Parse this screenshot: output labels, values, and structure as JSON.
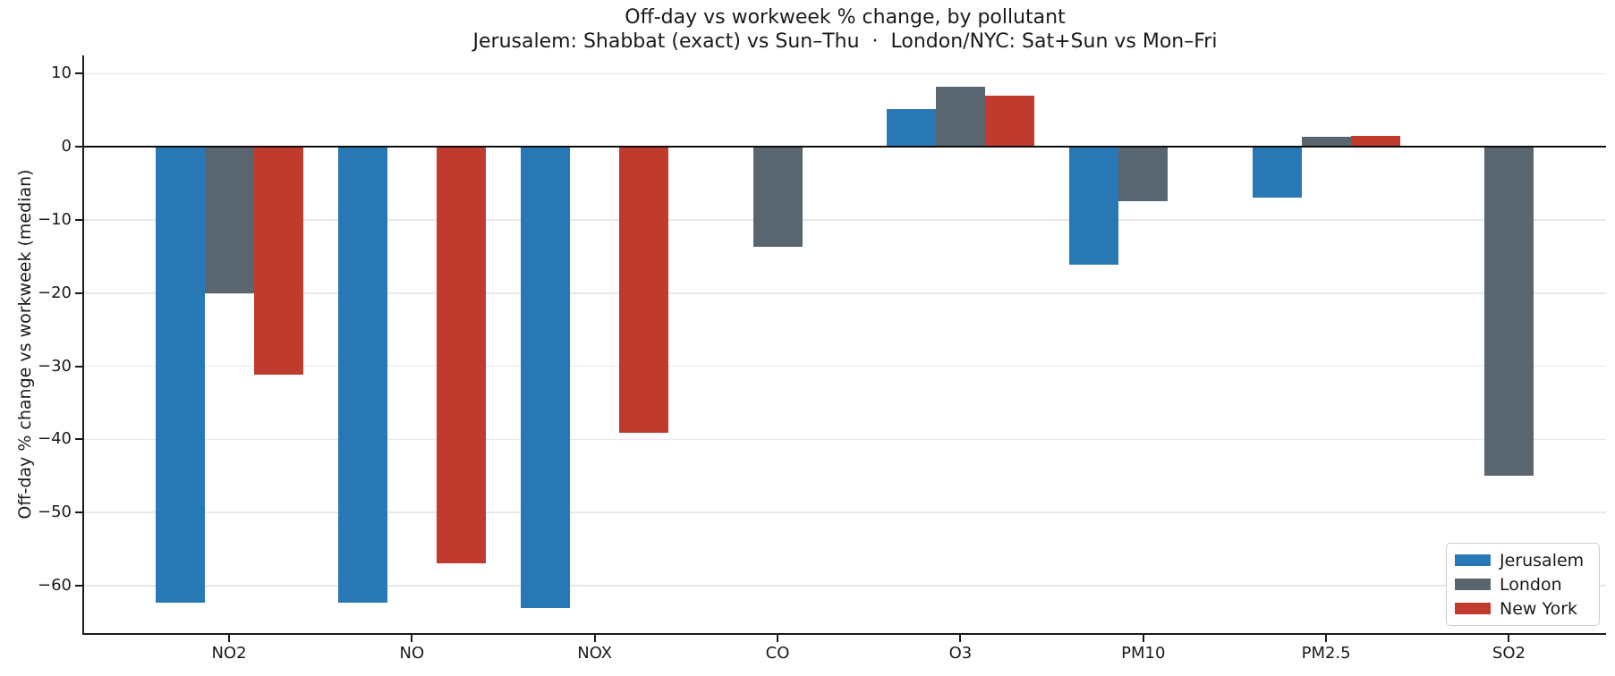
{
  "chart_data": {
    "type": "bar",
    "title": "Off-day vs workweek % change, by pollutant",
    "subtitle": "Jerusalem: Shabbat (exact) vs Sun–Thu  ·  London/NYC: Sat+Sun vs Mon–Fri",
    "xlabel": "",
    "ylabel": "Off-day % change vs workweek (median)",
    "categories": [
      "NO2",
      "NO",
      "NOX",
      "CO",
      "O3",
      "PM10",
      "PM2.5",
      "SO2"
    ],
    "series": [
      {
        "name": "Jerusalem",
        "color": "#2878b6",
        "values": [
          -62.3,
          -62.3,
          -63.1,
          null,
          5.2,
          -16.1,
          -7.0,
          null
        ]
      },
      {
        "name": "London",
        "color": "#596670",
        "values": [
          -20.0,
          null,
          null,
          -13.7,
          8.2,
          -7.4,
          1.4,
          -45.0
        ]
      },
      {
        "name": "New York",
        "color": "#c03a2e",
        "values": [
          -31.2,
          -57.0,
          -39.1,
          null,
          7.0,
          null,
          1.5,
          null
        ]
      }
    ],
    "ylim": [
      -66.5,
      12.5
    ],
    "yticks": [
      10,
      0,
      -10,
      -20,
      -30,
      -40,
      -50,
      -60
    ],
    "ytick_labels": [
      "10",
      "0",
      "−10",
      "−20",
      "−30",
      "−40",
      "−50",
      "−60"
    ],
    "grid": "horizontal",
    "zero_line": true,
    "legend_position": "lower right"
  }
}
